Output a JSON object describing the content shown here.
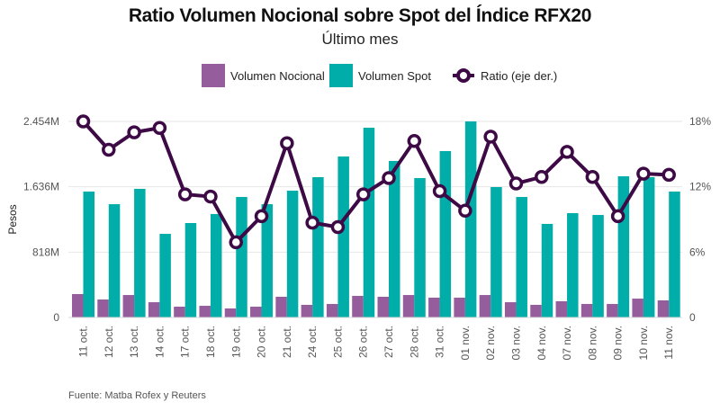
{
  "chart_data": {
    "type": "bar",
    "title": "Ratio Volumen Nocional sobre Spot del Índice RFX20",
    "subtitle": "Último mes",
    "xlabel": "",
    "ylabel": "Pesos",
    "y2label": "",
    "categories": [
      "11 oct.",
      "12 oct.",
      "13 oct.",
      "14 oct.",
      "17 oct.",
      "18 oct.",
      "19 oct.",
      "20 oct.",
      "21 oct.",
      "24 oct.",
      "25 oct.",
      "26 oct.",
      "27 oct.",
      "28 oct.",
      "31 oct.",
      "01 nov.",
      "02 nov.",
      "03 nov.",
      "04 nov.",
      "07 nov.",
      "08 nov.",
      "09 nov.",
      "10 nov.",
      "11 nov."
    ],
    "series": [
      {
        "name": "Volumen Nocional",
        "type": "bar",
        "axis": "left",
        "unit": "M",
        "color": "#965D9D",
        "values": [
          293,
          225,
          281,
          191,
          135,
          146,
          113,
          135,
          259,
          158,
          169,
          270,
          259,
          281,
          248,
          248,
          281,
          191,
          158,
          203,
          169,
          169,
          236,
          214
        ]
      },
      {
        "name": "Volumen Spot",
        "type": "bar",
        "axis": "left",
        "unit": "M",
        "color": "#00ADA8",
        "values": [
          1576,
          1418,
          1610,
          1047,
          1182,
          1295,
          1508,
          1418,
          1587,
          1756,
          2015,
          2375,
          1959,
          1745,
          2083,
          2454,
          1632,
          1508,
          1171,
          1306,
          1283,
          1767,
          1756,
          1576
        ]
      },
      {
        "name": "Ratio (eje der.)",
        "type": "line",
        "axis": "right",
        "unit": "%",
        "color": "#3D0A45",
        "values": [
          18.0,
          15.4,
          17.0,
          17.4,
          11.3,
          11.1,
          6.9,
          9.3,
          16.0,
          8.7,
          8.3,
          11.3,
          12.8,
          16.2,
          11.6,
          9.8,
          16.6,
          12.3,
          12.9,
          15.2,
          12.9,
          9.3,
          13.2,
          13.1
        ]
      }
    ],
    "y_left": {
      "min": 0,
      "max": 2454,
      "ticks": [
        0,
        818,
        1636,
        2454
      ],
      "tick_labels": [
        "0",
        "818M",
        "1.636M",
        "2.454M"
      ]
    },
    "y_right": {
      "min": 0,
      "max": 18,
      "ticks": [
        0,
        6,
        12,
        18
      ],
      "tick_labels": [
        "0",
        "6%",
        "12%",
        "18%"
      ]
    },
    "grid": true,
    "legend_position": "top-center",
    "source": "Fuente: Matba Rofex y Reuters"
  },
  "legend": {
    "items": [
      {
        "label": "Volumen Nocional",
        "color": "#965D9D"
      },
      {
        "label": "Volumen Spot",
        "color": "#00ADA8"
      },
      {
        "label": "Ratio (eje der.)",
        "color": "#3D0A45"
      }
    ]
  }
}
